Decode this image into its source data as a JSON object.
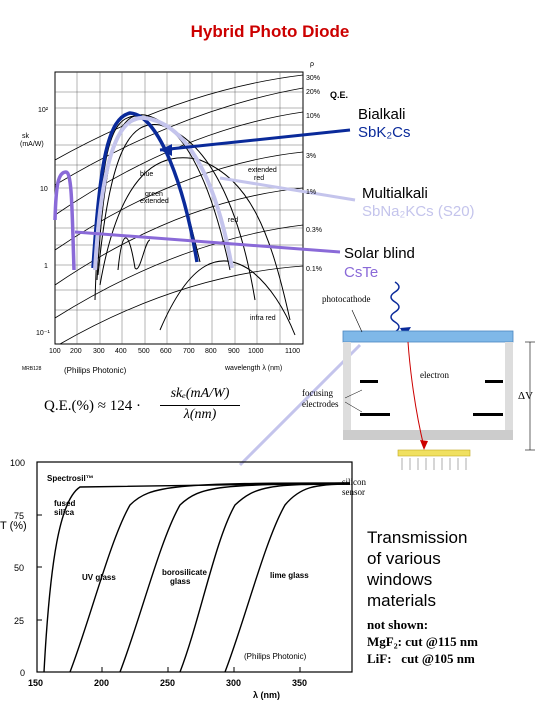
{
  "title": "Hybrid Photo Diode",
  "qe_chart": {
    "ylabel_line1": "sk",
    "ylabel_line2": "(mA/W)",
    "y_ticks": [
      "10²",
      "10",
      "1",
      "10⁻¹"
    ],
    "x_ticks": [
      "100",
      "200",
      "300",
      "400",
      "500",
      "600",
      "700",
      "800",
      "900",
      "1000",
      "1100"
    ],
    "xlabel": "wavelength λ (nm)",
    "figure_code": "MRB128",
    "right_axis_symbol": "ρ",
    "right_ticks": [
      "30%",
      "20%",
      "10%",
      "3%",
      "1%",
      "0.3%",
      "0.1%"
    ],
    "qe_label": "Q.E.",
    "curve_labels": {
      "blue": "blue",
      "green_extended": "green\nextended",
      "extended_red": "extended\nred",
      "red": "red",
      "infra_red": "infra red"
    },
    "credit": "(Philips Photonic)"
  },
  "annotations": {
    "bialkali_name": "Bialkali",
    "bialkali_formula": "SbK₂Cs",
    "multialkali_name": "Multialkali",
    "multialkali_formula": "SbNa₂KCs (S20)",
    "solarblind_name": "Solar blind",
    "solarblind_formula": "CsTe"
  },
  "formula": {
    "lhs": "Q.E.(%) ≈ 124 ·",
    "numerator": "skₑ(mA/W)",
    "denominator": "λ(nm)"
  },
  "hpd": {
    "photocathode": "photocathode",
    "electron": "electron",
    "focusing_electrodes": "focusing\nelectrodes",
    "delta_v": "ΔV",
    "silicon_sensor": "silicon\nsensor"
  },
  "transmission_chart": {
    "ylabel": "T (%)",
    "y_ticks": [
      "100",
      "75",
      "50",
      "25",
      "0"
    ],
    "x_ticks": [
      "150",
      "200",
      "250",
      "300",
      "350"
    ],
    "xlabel": "λ (nm)",
    "legend": "Spectrosil™",
    "materials": [
      "fused\nsilica",
      "UV glass",
      "borosilicate\nglass",
      "lime glass"
    ],
    "credit": "(Philips Photonic)"
  },
  "transmission_text": {
    "heading": "Transmission\nof various\nwindows\nmaterials",
    "not_shown": "not shown:",
    "mgf2": "MgF₂: cut @115 nm",
    "lif": "LiF:   cut @105 nm"
  },
  "colors": {
    "title": "#cc0000",
    "bialkali": "#0a2a9a",
    "multialkali": "#c4c4ec",
    "solarblind": "#8a6ad8",
    "window": "#7fb8e8",
    "sensor": "#f0e060",
    "electron_path": "#cc0000"
  }
}
